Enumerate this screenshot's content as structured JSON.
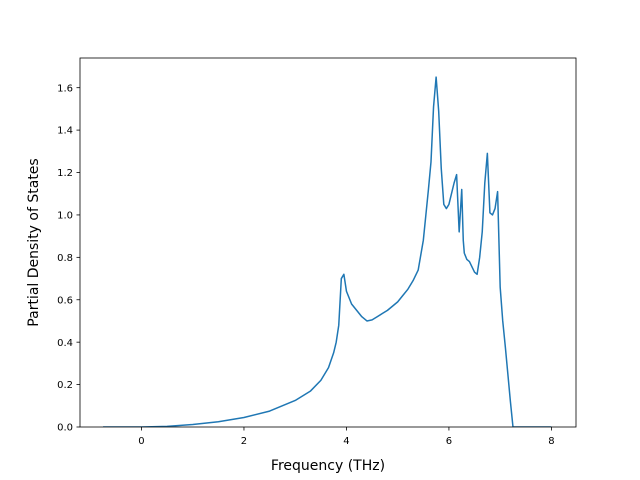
{
  "chart_data": {
    "type": "line",
    "title": "",
    "xlabel": "Frequency (THz)",
    "ylabel": "Partial Density of States",
    "xlim": [
      -1.2,
      8.48
    ],
    "ylim": [
      0.0,
      1.74
    ],
    "grid": false,
    "legend": "none",
    "x_ticks": [
      0,
      2,
      4,
      6,
      8
    ],
    "y_ticks": [
      0.0,
      0.2,
      0.4,
      0.6,
      0.8,
      1.0,
      1.2,
      1.4,
      1.6
    ],
    "x_tick_labels": [
      "0",
      "2",
      "4",
      "6",
      "8"
    ],
    "y_tick_labels": [
      "0.0",
      "0.2",
      "0.4",
      "0.6",
      "0.8",
      "1.0",
      "1.2",
      "1.4",
      "1.6"
    ],
    "colors": {
      "line": "#1f77b4",
      "axes": "#000000",
      "background": "#ffffff"
    },
    "series": [
      {
        "x": [
          -0.75,
          0.0,
          0.5,
          1.0,
          1.5,
          2.0,
          2.5,
          3.0,
          3.3,
          3.5,
          3.65,
          3.75,
          3.8,
          3.85,
          3.9,
          3.95,
          4.0,
          4.1,
          4.2,
          4.3,
          4.4,
          4.5,
          4.6,
          4.7,
          4.8,
          4.9,
          5.0,
          5.1,
          5.2,
          5.3,
          5.4,
          5.5,
          5.55,
          5.6,
          5.65,
          5.7,
          5.75,
          5.8,
          5.85,
          5.9,
          5.95,
          6.0,
          6.05,
          6.1,
          6.15,
          6.2,
          6.25,
          6.28,
          6.3,
          6.35,
          6.4,
          6.5,
          6.55,
          6.6,
          6.65,
          6.7,
          6.75,
          6.8,
          6.85,
          6.9,
          6.95,
          7.0,
          7.05,
          7.1,
          7.15,
          7.2,
          7.25,
          7.3,
          7.5,
          8.0
        ],
        "y": [
          0.0,
          0.0,
          0.003,
          0.012,
          0.025,
          0.045,
          0.075,
          0.125,
          0.17,
          0.22,
          0.28,
          0.35,
          0.4,
          0.48,
          0.7,
          0.72,
          0.64,
          0.58,
          0.55,
          0.52,
          0.5,
          0.505,
          0.52,
          0.535,
          0.55,
          0.57,
          0.59,
          0.62,
          0.65,
          0.69,
          0.74,
          0.88,
          1.0,
          1.12,
          1.25,
          1.51,
          1.65,
          1.49,
          1.22,
          1.05,
          1.03,
          1.05,
          1.1,
          1.15,
          1.19,
          0.92,
          1.12,
          0.88,
          0.82,
          0.79,
          0.78,
          0.73,
          0.72,
          0.8,
          0.92,
          1.15,
          1.29,
          1.01,
          1.0,
          1.03,
          1.11,
          0.66,
          0.5,
          0.38,
          0.25,
          0.12,
          0.0,
          0.0,
          0.0,
          0.0
        ]
      }
    ]
  }
}
